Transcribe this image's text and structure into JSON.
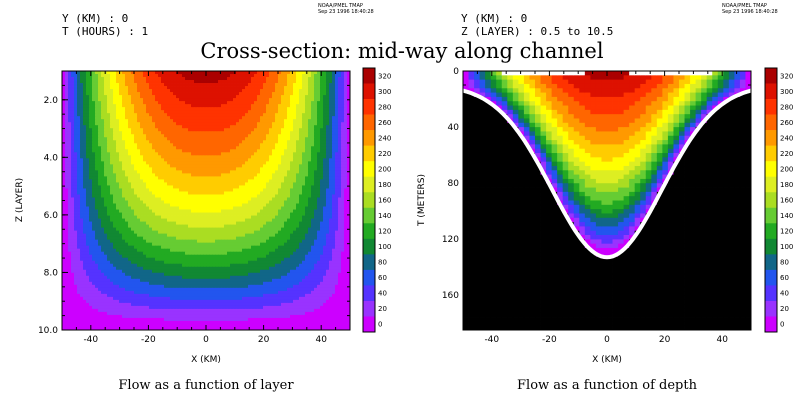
{
  "figure_title": "Cross-section: mid-way along channel",
  "panels": [
    {
      "header_line1": "Y (KM) : 0",
      "header_line2": "T (HOURS) : 1",
      "credit_line1": "NOAA/PMEL TMAP",
      "credit_line2": "Sep 23 1996 18:40:28",
      "caption": "Flow as a function of layer"
    },
    {
      "header_line1": "Y (KM) : 0",
      "header_line2": "Z (LAYER) : 0.5 to 10.5",
      "credit_line1": "NOAA/PMEL TMAP",
      "credit_line2": "Sep 23 1996 18:40:28",
      "caption": "Flow as a function of depth"
    }
  ],
  "colors": {
    "levels": [
      "#cc00ff",
      "#9933ff",
      "#5533ff",
      "#2255ee",
      "#116688",
      "#118833",
      "#22aa22",
      "#66cc33",
      "#aadd22",
      "#ddee22",
      "#ffff00",
      "#ffcc00",
      "#ff9900",
      "#ff6600",
      "#ff3300",
      "#dd1100",
      "#aa0000"
    ],
    "land": "#000000"
  },
  "chart_data": [
    {
      "type": "heatmap",
      "subtype": "filled-contour",
      "xlabel": "X (KM)",
      "ylabel": "Z (LAYER)",
      "xlim": [
        -50,
        50
      ],
      "ylim": [
        10.0,
        1.0
      ],
      "x_ticks": [
        "-40",
        "-20",
        "0",
        "20",
        "40"
      ],
      "y_ticks": [
        "2.0",
        "4.0",
        "6.0",
        "8.0",
        "10.0"
      ],
      "colorbar_levels": [
        "0",
        "20",
        "40",
        "60",
        "80",
        "100",
        "120",
        "140",
        "160",
        "180",
        "200",
        "220",
        "240",
        "260",
        "280",
        "300",
        "320"
      ],
      "value_range": [
        0,
        330
      ],
      "max_value_at": {
        "x": 0,
        "z": 1.0
      }
    },
    {
      "type": "heatmap",
      "subtype": "filled-cells",
      "xlabel": "X (KM)",
      "ylabel": "T (METERS)",
      "xlim": [
        -50,
        50
      ],
      "ylim": [
        185,
        0
      ],
      "x_ticks": [
        "-40",
        "-20",
        "0",
        "20",
        "40"
      ],
      "y_ticks": [
        "0",
        "40",
        "80",
        "120",
        "160"
      ],
      "colorbar_levels": [
        "0",
        "20",
        "40",
        "60",
        "80",
        "100",
        "120",
        "140",
        "160",
        "180",
        "200",
        "220",
        "240",
        "260",
        "280",
        "300",
        "320"
      ],
      "value_range": [
        0,
        330
      ],
      "channel_max_depth_m": 133,
      "channel_edge_depth_m": 10
    }
  ]
}
